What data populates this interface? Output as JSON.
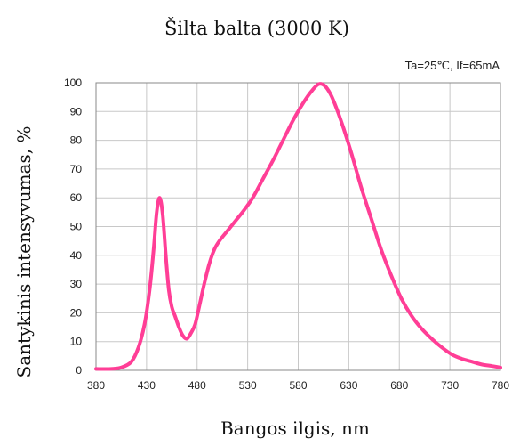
{
  "chart_data": {
    "type": "line",
    "title": "Šilta balta (3000 K)",
    "annotation": "Ta=25℃, If=65mA",
    "xlabel": "Bangos ilgis, nm",
    "ylabel": "Santykinis intensyvumas, %",
    "xlim": [
      380,
      780
    ],
    "ylim": [
      0,
      100
    ],
    "xticks": [
      380,
      430,
      480,
      530,
      580,
      630,
      680,
      730,
      780
    ],
    "yticks": [
      0,
      10,
      20,
      30,
      40,
      50,
      60,
      70,
      80,
      90,
      100
    ],
    "grid": true,
    "line_color": "#ff3e96",
    "series": [
      {
        "name": "",
        "x": [
          380,
          395,
          405,
          415,
          422,
          428,
          433,
          437,
          440,
          443,
          446,
          449,
          452,
          455,
          458,
          462,
          466,
          470,
          474,
          478,
          482,
          487,
          492,
          497,
          502,
          510,
          518,
          526,
          535,
          545,
          555,
          565,
          575,
          585,
          593,
          600,
          606,
          612,
          618,
          625,
          633,
          642,
          652,
          662,
          672,
          682,
          692,
          702,
          712,
          722,
          732,
          742,
          752,
          762,
          772,
          780
        ],
        "y": [
          0.5,
          0.5,
          1,
          3,
          8,
          16,
          28,
          42,
          55,
          60,
          54,
          40,
          28,
          22,
          19,
          15,
          12,
          11,
          13,
          16,
          22,
          30,
          37,
          42,
          45,
          48.5,
          52,
          55.5,
          60,
          66.5,
          73,
          80,
          87,
          93,
          97,
          99.5,
          99,
          96,
          91,
          84,
          75,
          64,
          53,
          42,
          33,
          25,
          19,
          14.5,
          11,
          8,
          5.5,
          4,
          3,
          2,
          1.5,
          1
        ]
      }
    ]
  }
}
